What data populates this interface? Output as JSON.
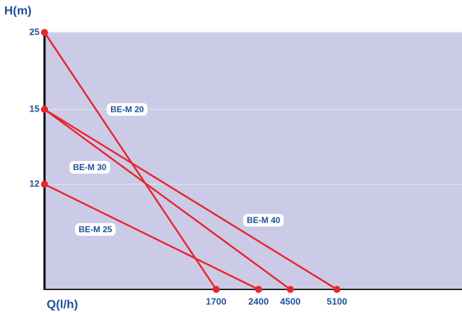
{
  "chart_data": {
    "type": "line",
    "x_label": "Q(l/h)",
    "y_label": "H(m)",
    "xlim": [
      0,
      5100
    ],
    "ylim": [
      0,
      25
    ],
    "xticks": [
      1700,
      2400,
      4500,
      5100
    ],
    "yticks": [
      12,
      15,
      25
    ],
    "grid": true,
    "series": [
      {
        "name": "BE-M 20",
        "color": "#e8262b",
        "x": [
          0,
          1700
        ],
        "values": [
          25,
          0
        ]
      },
      {
        "name": "BE-M 30",
        "color": "#e8262b",
        "x": [
          0,
          4500
        ],
        "values": [
          15,
          0
        ]
      },
      {
        "name": "BE-M 40",
        "color": "#e8262b",
        "x": [
          0,
          5100
        ],
        "values": [
          15,
          0
        ]
      },
      {
        "name": "BE-M 25",
        "color": "#e8262b",
        "x": [
          0,
          2400
        ],
        "values": [
          12,
          0
        ]
      }
    ]
  }
}
